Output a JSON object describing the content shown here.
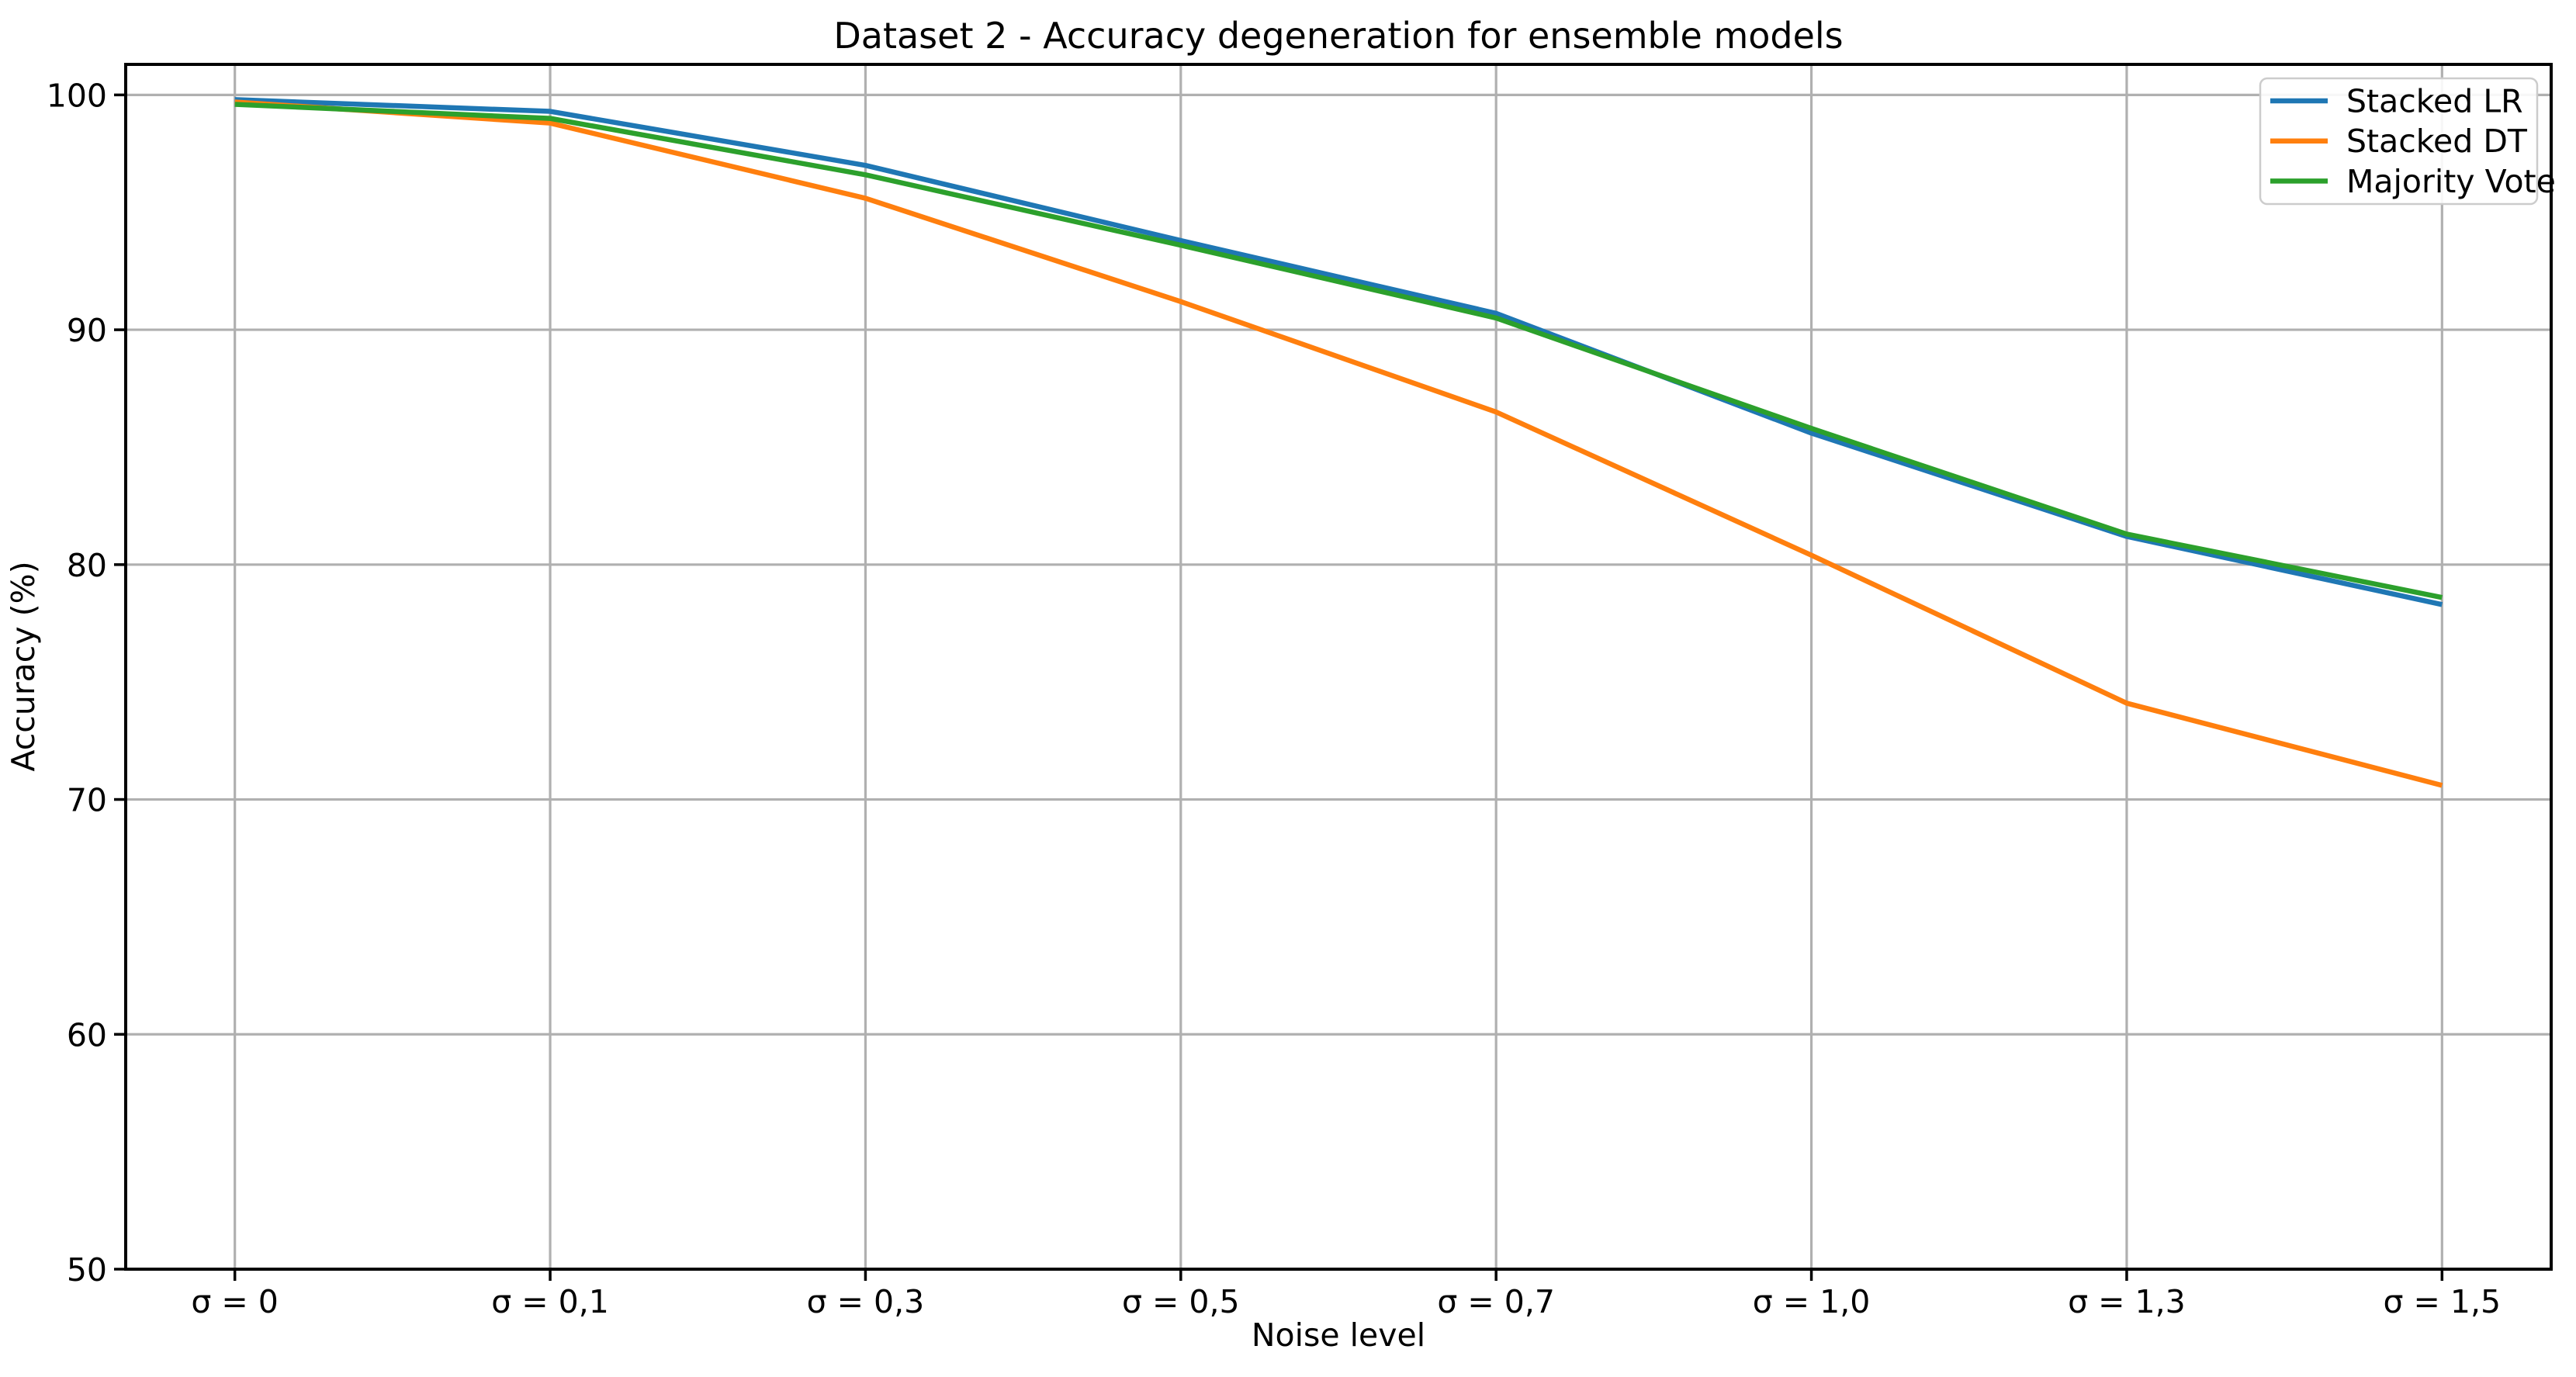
{
  "figure": {
    "background": "#ffffff"
  },
  "chart_data": {
    "type": "line",
    "title": "Dataset 2 - Accuracy degeneration for ensemble models",
    "xlabel": "Noise level",
    "ylabel": "Accuracy (%)",
    "categories": [
      "σ = 0",
      "σ = 0,1",
      "σ = 0,3",
      "σ = 0,5",
      "σ = 0,7",
      "σ = 1,0",
      "σ = 1,3",
      "σ = 1,5"
    ],
    "y_ticks": [
      50,
      60,
      70,
      80,
      90,
      100
    ],
    "ylim": [
      50,
      101.3
    ],
    "grid": true,
    "legend_position": "upper right",
    "series": [
      {
        "name": "Stacked LR",
        "color": "#1f77b4",
        "values": [
          99.8,
          99.3,
          97.0,
          93.8,
          90.7,
          85.6,
          81.2,
          78.3
        ]
      },
      {
        "name": "Stacked DT",
        "color": "#ff7f0e",
        "values": [
          99.7,
          98.8,
          95.6,
          91.2,
          86.5,
          80.4,
          74.1,
          70.6
        ]
      },
      {
        "name": "Majority Vote",
        "color": "#2ca02c",
        "values": [
          99.6,
          99.0,
          96.6,
          93.6,
          90.5,
          85.8,
          81.3,
          78.6
        ]
      }
    ]
  },
  "colors": {
    "grid": "#b0b0b0",
    "spine": "#000000",
    "tick": "#000000",
    "legend_border": "#cccccc",
    "legend_fill": "#ffffff",
    "background": "#ffffff"
  }
}
